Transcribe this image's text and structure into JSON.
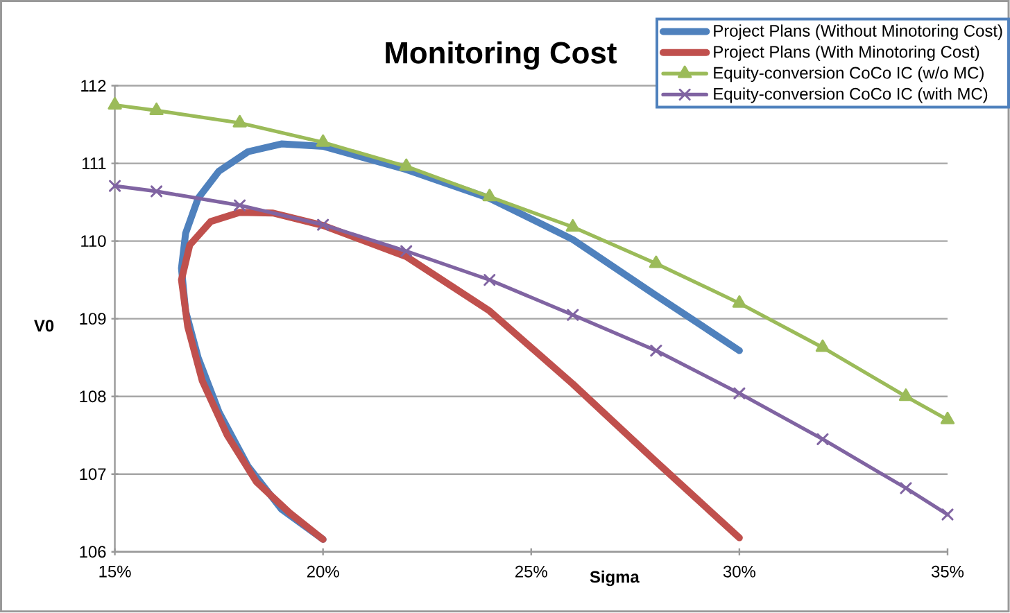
{
  "chart_data": {
    "type": "line",
    "title": "Monitoring Cost",
    "xlabel": "Sigma",
    "ylabel": "V0",
    "xlim": [
      15,
      35
    ],
    "xticks": [
      {
        "value": 15,
        "label": "15%"
      },
      {
        "value": 20,
        "label": "20%"
      },
      {
        "value": 25,
        "label": "25%"
      },
      {
        "value": 30,
        "label": "30%"
      },
      {
        "value": 35,
        "label": "35%"
      }
    ],
    "ylim": [
      106,
      112
    ],
    "yticks": [
      106,
      107,
      108,
      109,
      110,
      111,
      112
    ],
    "grid": "y",
    "legend": "top right",
    "line_style": "solid",
    "series": [
      {
        "name": "Project Plans (Without Minotoring Cost)",
        "color": "#4f81bd",
        "marker": "none",
        "x": [
          30,
          28,
          26,
          24,
          22,
          20,
          19,
          18.2,
          17.5,
          17,
          16.7,
          16.6,
          16.7,
          17,
          17.5,
          18.2,
          19,
          20
        ],
        "values": [
          108.59,
          109.3,
          110.02,
          110.55,
          110.92,
          111.22,
          111.25,
          111.15,
          110.9,
          110.55,
          110.1,
          109.65,
          109.1,
          108.5,
          107.8,
          107.1,
          106.55,
          106.16
        ]
      },
      {
        "name": "Project Plans (With Minotoring Cost)",
        "color": "#c0504d",
        "marker": "none",
        "x": [
          30,
          28,
          26,
          24,
          22,
          20,
          18.8,
          18,
          17.3,
          16.8,
          16.6,
          16.75,
          17.1,
          17.7,
          18.4,
          19.2,
          20
        ],
        "values": [
          106.18,
          107.16,
          108.16,
          109.1,
          109.8,
          110.2,
          110.36,
          110.37,
          110.25,
          109.95,
          109.5,
          108.9,
          108.2,
          107.5,
          106.9,
          106.5,
          106.16
        ]
      },
      {
        "name": "Equity-conversion CoCo IC (w/o MC)",
        "color": "#9bbb59",
        "marker": "triangle",
        "x": [
          15,
          16,
          18,
          20,
          22,
          24,
          26,
          28,
          30,
          32,
          34,
          35
        ],
        "values": [
          111.75,
          111.68,
          111.52,
          111.27,
          110.96,
          110.57,
          110.18,
          109.71,
          109.2,
          108.63,
          108.0,
          107.7
        ]
      },
      {
        "name": "Equity-conversion CoCo IC (with MC)",
        "color": "#8064a2",
        "marker": "cross",
        "x": [
          15,
          16,
          18,
          20,
          22,
          24,
          26,
          28,
          30,
          32,
          34,
          35
        ],
        "values": [
          110.71,
          110.64,
          110.46,
          110.21,
          109.87,
          109.5,
          109.05,
          108.59,
          108.04,
          107.45,
          106.82,
          106.48
        ]
      }
    ]
  }
}
